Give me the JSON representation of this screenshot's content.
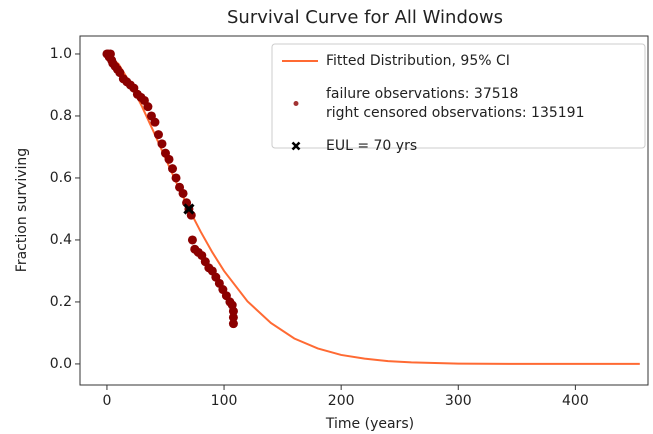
{
  "chart_data": {
    "type": "line",
    "title": "Survival Curve for All Windows",
    "xlabel": "Time (years)",
    "ylabel": "Fraction surviving",
    "xlim": [
      -23,
      462
    ],
    "ylim": [
      -0.068,
      1.058
    ],
    "xticks": [
      0,
      100,
      200,
      300,
      400
    ],
    "yticks": [
      {
        "value": 0.0,
        "label": "0.0"
      },
      0.2,
      0.4,
      0.6,
      0.8,
      {
        "value": 1.0,
        "label": "1.0"
      }
    ],
    "grid": false,
    "legend": "upper right",
    "series": [
      {
        "name": "Fitted Distribution, 95% CI",
        "type": "line",
        "color": "#ff6a33",
        "x": [
          0,
          10,
          20,
          30,
          40,
          50,
          60,
          70,
          80,
          90,
          100,
          120,
          140,
          160,
          180,
          200,
          220,
          240,
          260,
          280,
          300,
          350,
          400,
          455
        ],
        "values": [
          1.0,
          0.967,
          0.905,
          0.83,
          0.748,
          0.663,
          0.579,
          0.5,
          0.427,
          0.36,
          0.3,
          0.202,
          0.132,
          0.082,
          0.05,
          0.029,
          0.017,
          0.009,
          0.005,
          0.003,
          0.001,
          0.0,
          0.0,
          0.0
        ]
      },
      {
        "name": [
          "failure observations: 37518",
          "right censored observations: 135191"
        ],
        "type": "scatter",
        "marker": "circle",
        "color": "#8b0000",
        "x": [
          0,
          1,
          2,
          3,
          4,
          5,
          7,
          9,
          11,
          14,
          17,
          20,
          23,
          26,
          29,
          32,
          35,
          38,
          41,
          44,
          47,
          50,
          53,
          56,
          59,
          62,
          65,
          68,
          70,
          72,
          73,
          75,
          78,
          81,
          84,
          87,
          90,
          93,
          96,
          99,
          102,
          105,
          107,
          108,
          108,
          108
        ],
        "values": [
          1.0,
          1.0,
          0.99,
          1.0,
          0.98,
          0.97,
          0.96,
          0.95,
          0.94,
          0.92,
          0.91,
          0.9,
          0.89,
          0.87,
          0.86,
          0.85,
          0.83,
          0.8,
          0.78,
          0.74,
          0.71,
          0.68,
          0.66,
          0.63,
          0.6,
          0.57,
          0.55,
          0.52,
          0.5,
          0.48,
          0.4,
          0.37,
          0.36,
          0.35,
          0.33,
          0.31,
          0.3,
          0.28,
          0.26,
          0.24,
          0.22,
          0.2,
          0.19,
          0.17,
          0.15,
          0.13
        ]
      },
      {
        "name": "EUL = 70 yrs",
        "type": "scatter",
        "marker": "x",
        "color": "#000000",
        "x": [
          70
        ],
        "values": [
          0.5
        ]
      }
    ]
  }
}
